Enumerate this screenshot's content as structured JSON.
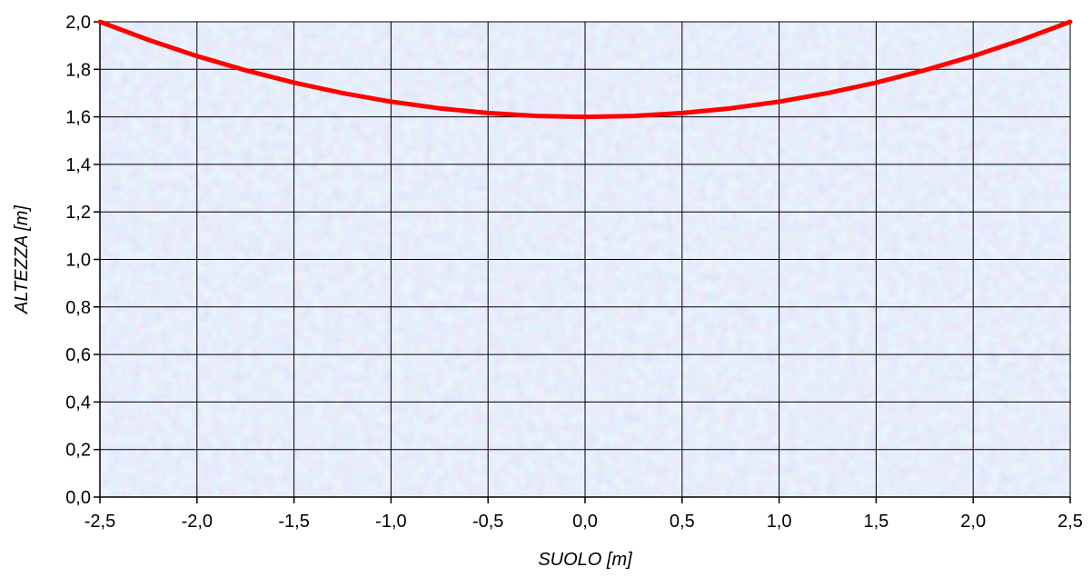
{
  "chart_data": {
    "type": "line",
    "title": "",
    "xlabel": "SUOLO [m]",
    "ylabel": "ALTEZZA [m]",
    "xlim": [
      -2.5,
      2.5
    ],
    "ylim": [
      0,
      2
    ],
    "x_ticks": [
      "-2,5",
      "-2,0",
      "-1,5",
      "-1,0",
      "-0,5",
      "0,0",
      "0,5",
      "1,0",
      "1,5",
      "2,0",
      "2,5"
    ],
    "y_ticks": [
      "0,0",
      "0,2",
      "0,4",
      "0,6",
      "0,8",
      "1,0",
      "1,2",
      "1,4",
      "1,6",
      "1,8",
      "2,0"
    ],
    "grid": true,
    "legend": "none",
    "series": [
      {
        "color": "#ff0000",
        "x": [
          -2.5,
          -2.25,
          -2.0,
          -1.75,
          -1.5,
          -1.25,
          -1.0,
          -0.75,
          -0.5,
          -0.25,
          0.0,
          0.25,
          0.5,
          0.75,
          1.0,
          1.25,
          1.5,
          1.75,
          2.0,
          2.25,
          2.5
        ],
        "y": [
          2.0,
          1.924,
          1.856,
          1.796,
          1.744,
          1.7,
          1.664,
          1.636,
          1.616,
          1.604,
          1.6,
          1.604,
          1.616,
          1.636,
          1.664,
          1.7,
          1.744,
          1.796,
          1.856,
          1.924,
          2.0
        ]
      }
    ],
    "colors": {
      "background": "#c8d6f2",
      "grid": "#000000",
      "line": "#ff0000"
    }
  }
}
